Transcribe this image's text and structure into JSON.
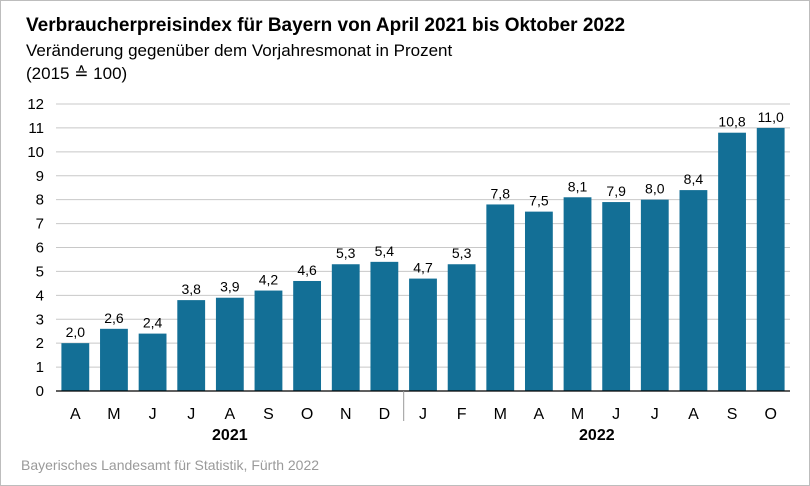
{
  "header": {
    "title": "Verbraucherpreisindex für Bayern von April 2021 bis Oktober 2022",
    "subtitle": "Veränderung gegenüber dem Vorjahresmonat in Prozent",
    "base_note": "(2015 ≙ 100)"
  },
  "footer": {
    "source": "Bayerisches Landesamt für Statistik, Fürth 2022"
  },
  "colors": {
    "bar": "#136f96",
    "grid": "#c8c8c8",
    "axis": "#000000"
  },
  "chart_data": {
    "type": "bar",
    "title": "Verbraucherpreisindex für Bayern von April 2021 bis Oktober 2022",
    "subtitle": "Veränderung gegenüber dem Vorjahresmonat in Prozent",
    "ylabel": "",
    "xlabel": "",
    "ylim": [
      0,
      12
    ],
    "yticks": [
      "0",
      "1",
      "2",
      "3",
      "4",
      "5",
      "6",
      "7",
      "8",
      "9",
      "10",
      "11",
      "12"
    ],
    "grid": true,
    "categories": [
      "A",
      "M",
      "J",
      "J",
      "A",
      "S",
      "O",
      "N",
      "D",
      "J",
      "F",
      "M",
      "A",
      "M",
      "J",
      "J",
      "A",
      "S",
      "O"
    ],
    "values": [
      2.0,
      2.6,
      2.4,
      3.8,
      3.9,
      4.2,
      4.6,
      5.3,
      5.4,
      4.7,
      5.3,
      7.8,
      7.5,
      8.1,
      7.9,
      8.0,
      8.4,
      10.8,
      11.0
    ],
    "value_labels": [
      "2,0",
      "2,6",
      "2,4",
      "3,8",
      "3,9",
      "4,2",
      "4,6",
      "5,3",
      "5,4",
      "4,7",
      "5,3",
      "7,8",
      "7,5",
      "8,1",
      "7,9",
      "8,0",
      "8,4",
      "10,8",
      "11,0"
    ],
    "year_groups": [
      {
        "label": "2021",
        "first": 0,
        "last": 8
      },
      {
        "label": "2022",
        "first": 9,
        "last": 18
      }
    ]
  }
}
